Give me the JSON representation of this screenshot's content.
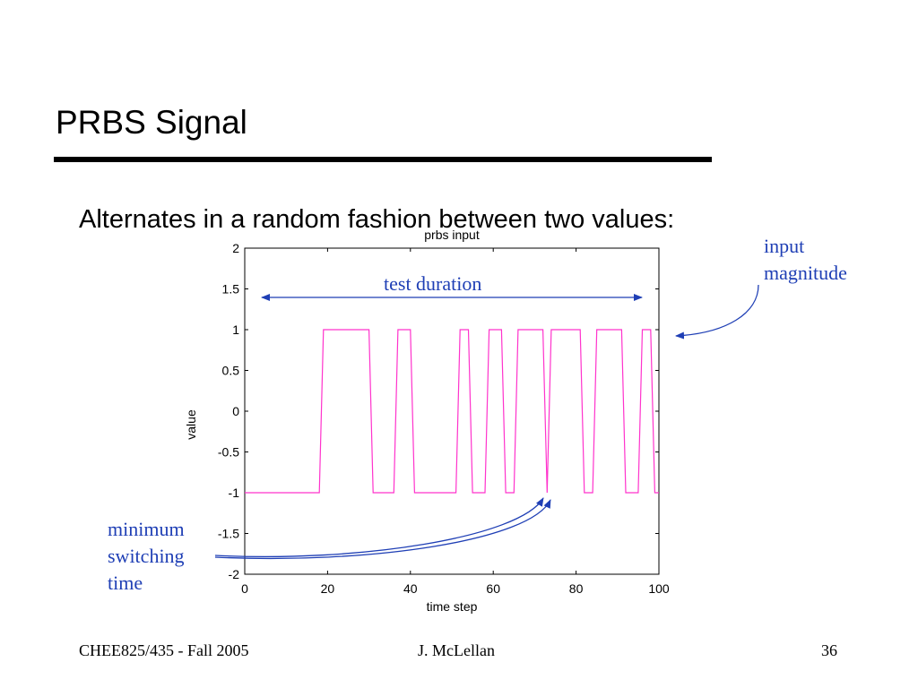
{
  "slide": {
    "title": "PRBS Signal",
    "bullet": "Alternates in a random fashion between two values:"
  },
  "annotations": {
    "test_duration": "test duration",
    "input_magnitude_line1": "input",
    "input_magnitude_line2": "magnitude",
    "min_switching_line1": "minimum",
    "min_switching_line2": "switching",
    "min_switching_line3": "time"
  },
  "footer": {
    "left": "CHEE825/435 - Fall 2005",
    "center": "J. McLellan",
    "right": "36"
  },
  "colors": {
    "signal": "#ff33cc",
    "annotation": "#1f3fb5"
  },
  "chart_data": {
    "type": "line",
    "title": "prbs input",
    "xlabel": "time step",
    "ylabel": "value",
    "xlim": [
      0,
      100
    ],
    "ylim": [
      -2,
      2
    ],
    "xticks": [
      0,
      20,
      40,
      60,
      80,
      100
    ],
    "yticks": [
      -2,
      -1.5,
      -1,
      -0.5,
      0,
      0.5,
      1,
      1.5,
      2
    ],
    "grid": false,
    "series": [
      {
        "x": [
          0,
          18,
          19,
          30,
          31,
          36,
          37,
          40,
          41,
          51,
          52,
          54,
          55,
          58,
          59,
          62,
          63,
          65,
          66,
          72,
          73,
          74,
          75,
          81,
          82,
          84,
          85,
          91,
          92,
          95,
          96,
          98,
          99,
          100
        ],
        "y": [
          -1,
          -1,
          1,
          1,
          -1,
          -1,
          1,
          1,
          -1,
          -1,
          1,
          1,
          -1,
          -1,
          1,
          1,
          -1,
          -1,
          1,
          1,
          -1,
          1,
          1,
          1,
          -1,
          -1,
          1,
          1,
          -1,
          -1,
          1,
          1,
          -1,
          -1
        ]
      }
    ]
  }
}
